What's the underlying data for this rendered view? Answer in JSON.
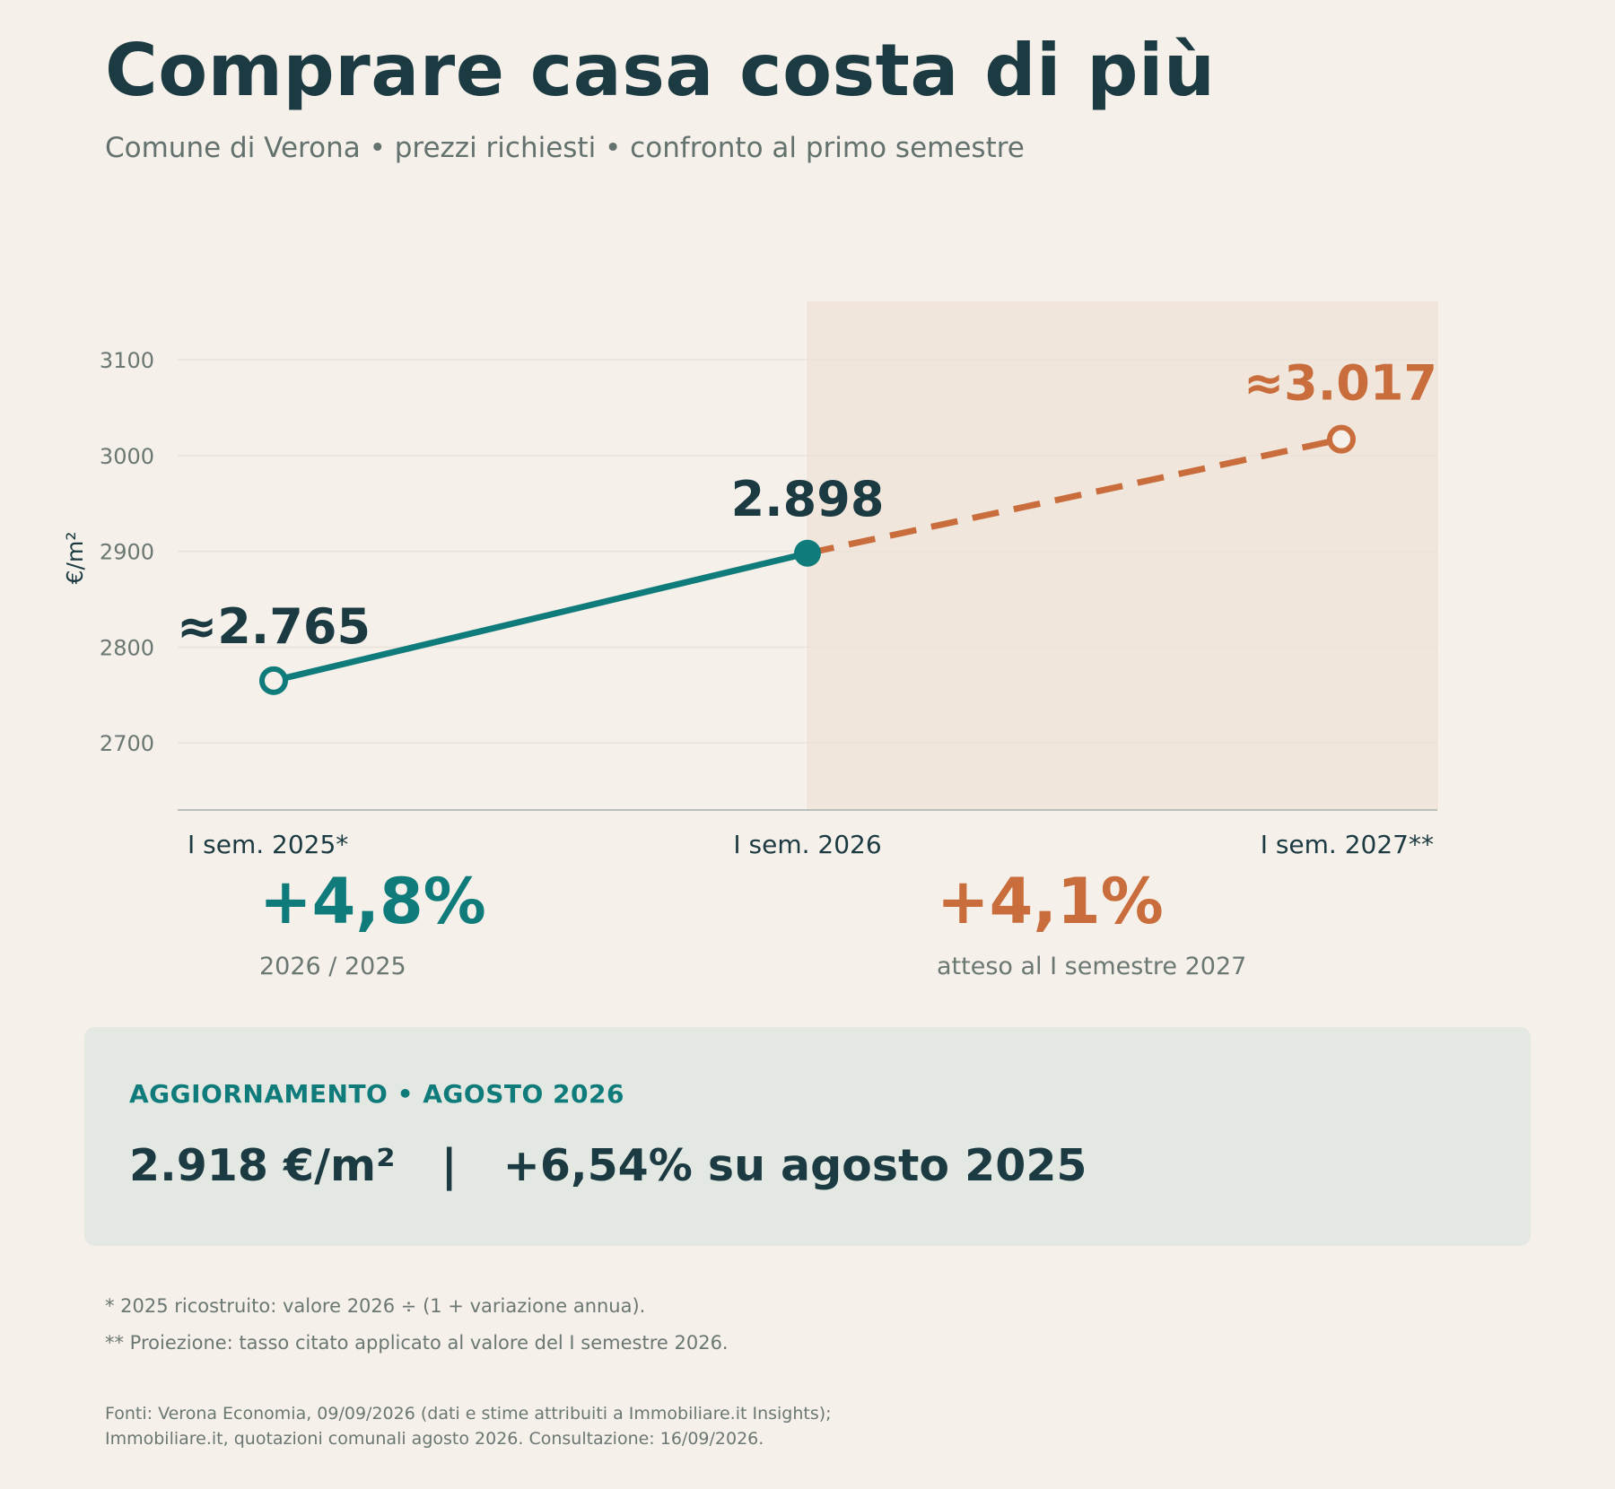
{
  "header": {
    "title": "Comprare casa costa di più",
    "subtitle": "Comune di Verona • prezzi richiesti • confronto al primo semestre"
  },
  "chart_data": {
    "type": "line",
    "title": "",
    "ylabel": "€/m²",
    "ylim": [
      2630,
      3160
    ],
    "yticks": [
      "2700",
      "2800",
      "2900",
      "3000",
      "3100"
    ],
    "grid": true,
    "categories": [
      "I sem. 2025*",
      "I sem. 2026",
      "I sem. 2027**"
    ],
    "values": [
      2765,
      2898,
      3017
    ],
    "data_labels": [
      "≈2.765",
      "2.898",
      "≈3.017"
    ],
    "projection_from_index": 1,
    "colors": {
      "actual": "#0f7b7b",
      "projection": "#c86d3b",
      "shade": "#f0e6dc"
    }
  },
  "stats": [
    {
      "value": "+4,8%",
      "caption": "2026 / 2025"
    },
    {
      "value": "+4,1%",
      "caption": "atteso al I semestre 2027"
    }
  ],
  "update": {
    "label": "AGGIORNAMENTO • AGOSTO 2026",
    "value": "2.918 €/m²   |   +6,54% su agosto 2025"
  },
  "notes": [
    "* 2025 ricostruito: valore 2026 ÷ (1 + variazione annua).",
    "** Proiezione: tasso citato applicato al valore del I semestre 2026."
  ],
  "sources": [
    "Fonti: Verona Economia, 09/09/2026 (dati e stime attribuiti a Immobiliare.it Insights);",
    "Immobiliare.it, quotazioni comunali agosto 2026. Consultazione: 16/09/2026."
  ]
}
